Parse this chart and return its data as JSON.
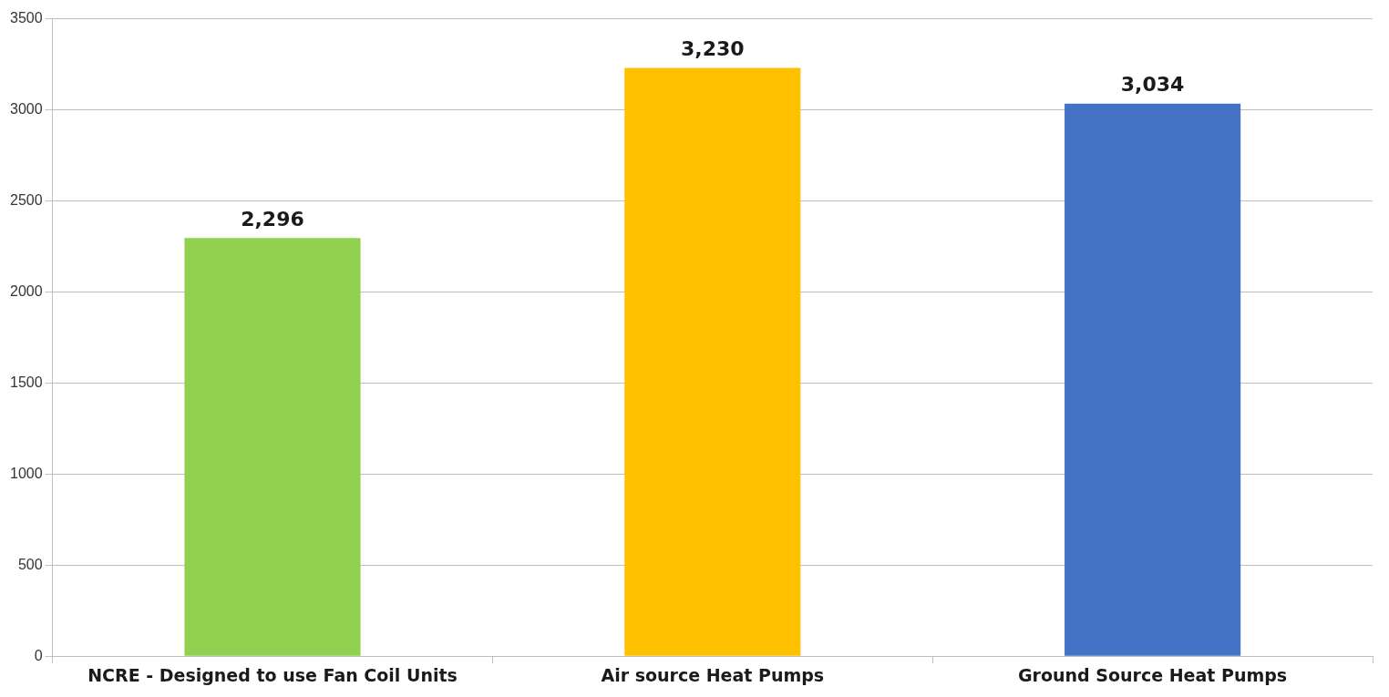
{
  "chart_data": {
    "type": "bar",
    "categories": [
      "NCRE - Designed to use Fan Coil Units",
      "Air source Heat Pumps",
      "Ground Source Heat Pumps"
    ],
    "values": [
      2296,
      3230,
      3034
    ],
    "colors": [
      "#92d050",
      "#ffc000",
      "#4472c4"
    ],
    "value_labels": [
      "2,296",
      "3,230",
      "3,034"
    ],
    "ylim": [
      0,
      3500
    ],
    "yticks": [
      0,
      500,
      1000,
      1500,
      2000,
      2500,
      3000,
      3500
    ],
    "grid": "y",
    "legend": false
  }
}
